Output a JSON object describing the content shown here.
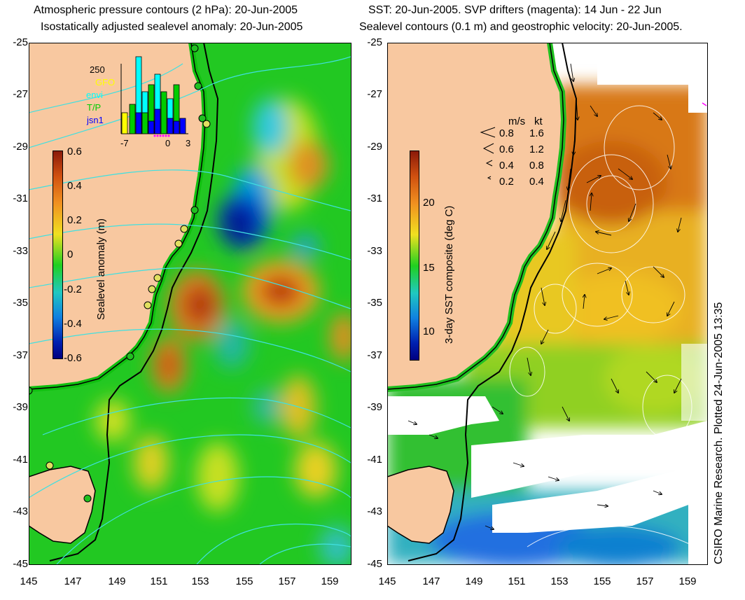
{
  "left_panel": {
    "title_line1": "Atmospheric pressure contours (2 hPa): 20-Jun-2005",
    "title_line2": "Isostatically adjusted sealevel anomaly: 20-Jun-2005",
    "colorbar_label": "Sealevel anomaly (m)",
    "colorbar_ticks": [
      "0.6",
      "0.4",
      "0.2",
      "0",
      "-0.2",
      "-0.4",
      "-0.6"
    ],
    "inset": {
      "ymax_label": "250",
      "series": [
        {
          "name": "GFO",
          "color": "#ffff00"
        },
        {
          "name": "envi",
          "color": "#00ffff"
        },
        {
          "name": "T/P",
          "color": "#00cc00"
        },
        {
          "name": "jsn1",
          "color": "#0000ff"
        }
      ],
      "x_ticks": [
        "-7",
        "0",
        "3"
      ]
    }
  },
  "right_panel": {
    "title_line1": "SST: 20-Jun-2005. SVP drifters (magenta): 14 Jun - 22 Jun",
    "title_line2": "Sealevel contours (0.1 m) and geostrophic velocity: 20-Jun-2005.",
    "colorbar_label": "3-day SST composite (deg C)",
    "colorbar_ticks": [
      "20",
      "15",
      "10"
    ],
    "velocity_legend": {
      "header_ms": "m/s",
      "header_kt": "kt",
      "rows": [
        {
          "ms": "0.8",
          "kt": "1.6"
        },
        {
          "ms": "0.6",
          "kt": "1.2"
        },
        {
          "ms": "0.4",
          "kt": "0.8"
        },
        {
          "ms": "0.2",
          "kt": "0.4"
        }
      ]
    },
    "credit": "CSIRO Marine Research. Plotted 24-Jun-2005 13:35"
  },
  "axes": {
    "y_ticks": [
      "-25",
      "-27",
      "-29",
      "-31",
      "-33",
      "-35",
      "-37",
      "-39",
      "-41",
      "-43",
      "-45"
    ],
    "x_ticks": [
      "145",
      "147",
      "149",
      "151",
      "153",
      "155",
      "157",
      "159"
    ]
  },
  "colors": {
    "land": "#f8c8a0",
    "contour_left": "#40e0e0",
    "contour_right": "#ffffff",
    "coast": "#000000"
  }
}
